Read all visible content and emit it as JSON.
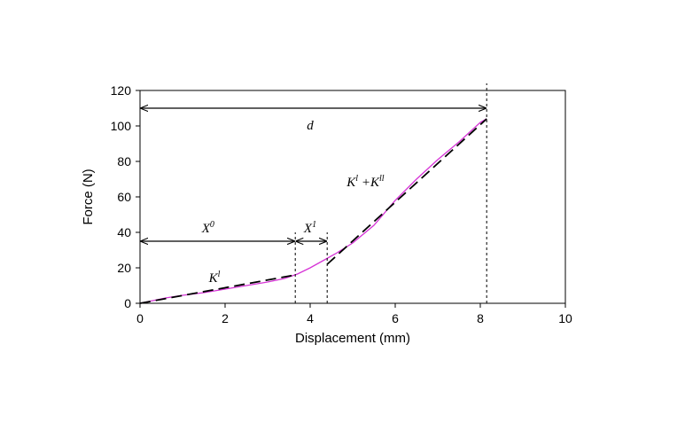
{
  "chart_data": {
    "type": "line",
    "xlabel": "Displacement (mm)",
    "ylabel": "Force (N)",
    "xlim": [
      0,
      10
    ],
    "ylim": [
      0,
      120
    ],
    "xticks": [
      "0",
      "2",
      "4",
      "6",
      "8",
      "10"
    ],
    "yticks": [
      "0",
      "20",
      "40",
      "60",
      "80",
      "100",
      "120"
    ],
    "grid": false,
    "series": [
      {
        "style": "solid",
        "color": "#d633d6",
        "x": [
          0,
          0.3,
          0.6,
          1.0,
          1.5,
          2.0,
          2.5,
          3.0,
          3.4,
          3.7,
          4.0,
          4.3,
          4.6,
          5.0,
          5.5,
          6.0,
          6.5,
          7.0,
          7.5,
          8.0,
          8.15
        ],
        "y": [
          0,
          1.5,
          3,
          4.5,
          6,
          8,
          10,
          12,
          14,
          16.5,
          20,
          24,
          28,
          34,
          44,
          58,
          70,
          81,
          91,
          102,
          104
        ]
      },
      {
        "style": "dashed",
        "color": "#000000",
        "x": [
          0,
          3.65
        ],
        "y": [
          0,
          16
        ]
      },
      {
        "style": "dashed",
        "color": "#000000",
        "x": [
          4.4,
          8.15
        ],
        "y": [
          22,
          104
        ]
      }
    ],
    "vlines": [
      {
        "x": 3.65,
        "y_top": 40
      },
      {
        "x": 4.4,
        "y_top": 40
      },
      {
        "x": 8.15,
        "y_top": 120
      }
    ],
    "arrows": [
      {
        "label_key": "d",
        "x0": 0,
        "x1": 8.15,
        "y": 110
      },
      {
        "label_key": "X0",
        "x0": 0,
        "x1": 3.65,
        "y": 35
      },
      {
        "label_key": "X1",
        "x0": 3.65,
        "x1": 4.4,
        "y": 35
      }
    ],
    "annotations": {
      "d": {
        "text": "d",
        "x": 4.0,
        "y": 98
      },
      "X0": {
        "base": "X",
        "sup": "0",
        "x": 1.6,
        "y": 40
      },
      "X1": {
        "base": "X",
        "sup": "1",
        "x": 4.0,
        "y": 40
      },
      "K1": {
        "base": "K",
        "sup": "l",
        "x": 1.75,
        "y": 12
      },
      "K1K2": {
        "base1": "K",
        "sup1": "l",
        "mid": " +",
        "base2": "K",
        "sup2": "ll",
        "x": 5.3,
        "y": 66
      }
    }
  }
}
